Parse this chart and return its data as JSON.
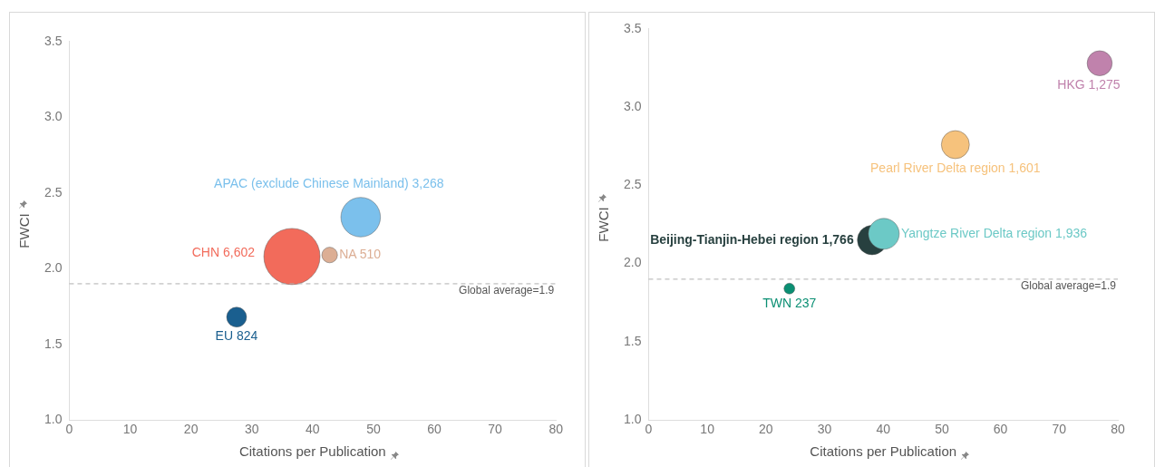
{
  "chart_data": [
    {
      "type": "bubble",
      "xlabel": "Citations per Publication",
      "ylabel": "FWCI",
      "xlim": [
        0,
        80
      ],
      "xticks": [
        0,
        10,
        20,
        30,
        40,
        50,
        60,
        70,
        80
      ],
      "ylim": [
        1.0,
        3.5
      ],
      "yticks": [
        {
          "value": 1,
          "label": "1.0"
        },
        1.5,
        {
          "value": 2,
          "label": "2.0"
        },
        2.5,
        {
          "value": 3,
          "label": "3.0"
        },
        3.5
      ],
      "grid": false,
      "legend": false,
      "series": [
        {
          "name": "CHN 6,602",
          "color": "#f26b5b",
          "x": [
            36.6
          ],
          "values": [
            2.08
          ],
          "sizes": [
            1
          ]
        },
        {
          "name": "APAC (exclude Chinese Mainland) 3,268",
          "color": "#7bc0ec",
          "x": [
            47.9
          ],
          "values": [
            2.34
          ],
          "sizes": [
            0.495
          ]
        },
        {
          "name": "NA 510",
          "color": "#dcae94",
          "x": [
            42.8
          ],
          "values": [
            2.09
          ],
          "sizes": [
            0.077
          ]
        },
        {
          "name": "EU 824",
          "color": "#1a5f8f",
          "x": [
            27.5
          ],
          "values": [
            1.68
          ],
          "sizes": [
            0.125
          ]
        }
      ],
      "ref_lines": [
        {
          "axis": "y",
          "value": 1.9,
          "label": "Global average=1.9",
          "color": "#b0b0b0",
          "line_style": "dashed"
        }
      ]
    },
    {
      "type": "bubble",
      "xlabel": "Citations per Publication",
      "ylabel": "FWCI",
      "xlim": [
        0,
        80
      ],
      "xticks": [
        0,
        10,
        20,
        30,
        40,
        50,
        60,
        70,
        80
      ],
      "ylim": [
        1.0,
        3.5
      ],
      "yticks": [
        {
          "value": 1,
          "label": "1.0"
        },
        1.5,
        {
          "value": 2,
          "label": "2.0"
        },
        2.5,
        {
          "value": 3,
          "label": "3.0"
        },
        3.5
      ],
      "grid": false,
      "legend": false,
      "series": [
        {
          "name": "HKG 1,275",
          "color": "#c082ac",
          "x": [
            76.9
          ],
          "values": [
            3.28
          ],
          "sizes": [
            0.659
          ]
        },
        {
          "name": "Pearl River Delta region 1,601",
          "color": "#f6c27c",
          "x": [
            52.3
          ],
          "values": [
            2.76
          ],
          "sizes": [
            0.827
          ]
        },
        {
          "name": "Yangtze River Delta region 1,936",
          "color": "#6cc9c6",
          "x": [
            40.1
          ],
          "values": [
            2.19
          ],
          "sizes": [
            1
          ]
        },
        {
          "name": "Beijing-Tianjin-Hebei region 1,766",
          "color": "#27403f",
          "x": [
            38.1
          ],
          "values": [
            2.15
          ],
          "sizes": [
            0.912
          ]
        },
        {
          "name": "TWN 237",
          "color": "#0a8f73",
          "x": [
            24.0
          ],
          "values": [
            1.84
          ],
          "sizes": [
            0.122
          ]
        }
      ],
      "ref_lines": [
        {
          "axis": "y",
          "value": 1.9,
          "label": "Global average=1.9",
          "color": "#b0b0b0",
          "line_style": "dashed"
        }
      ]
    }
  ]
}
